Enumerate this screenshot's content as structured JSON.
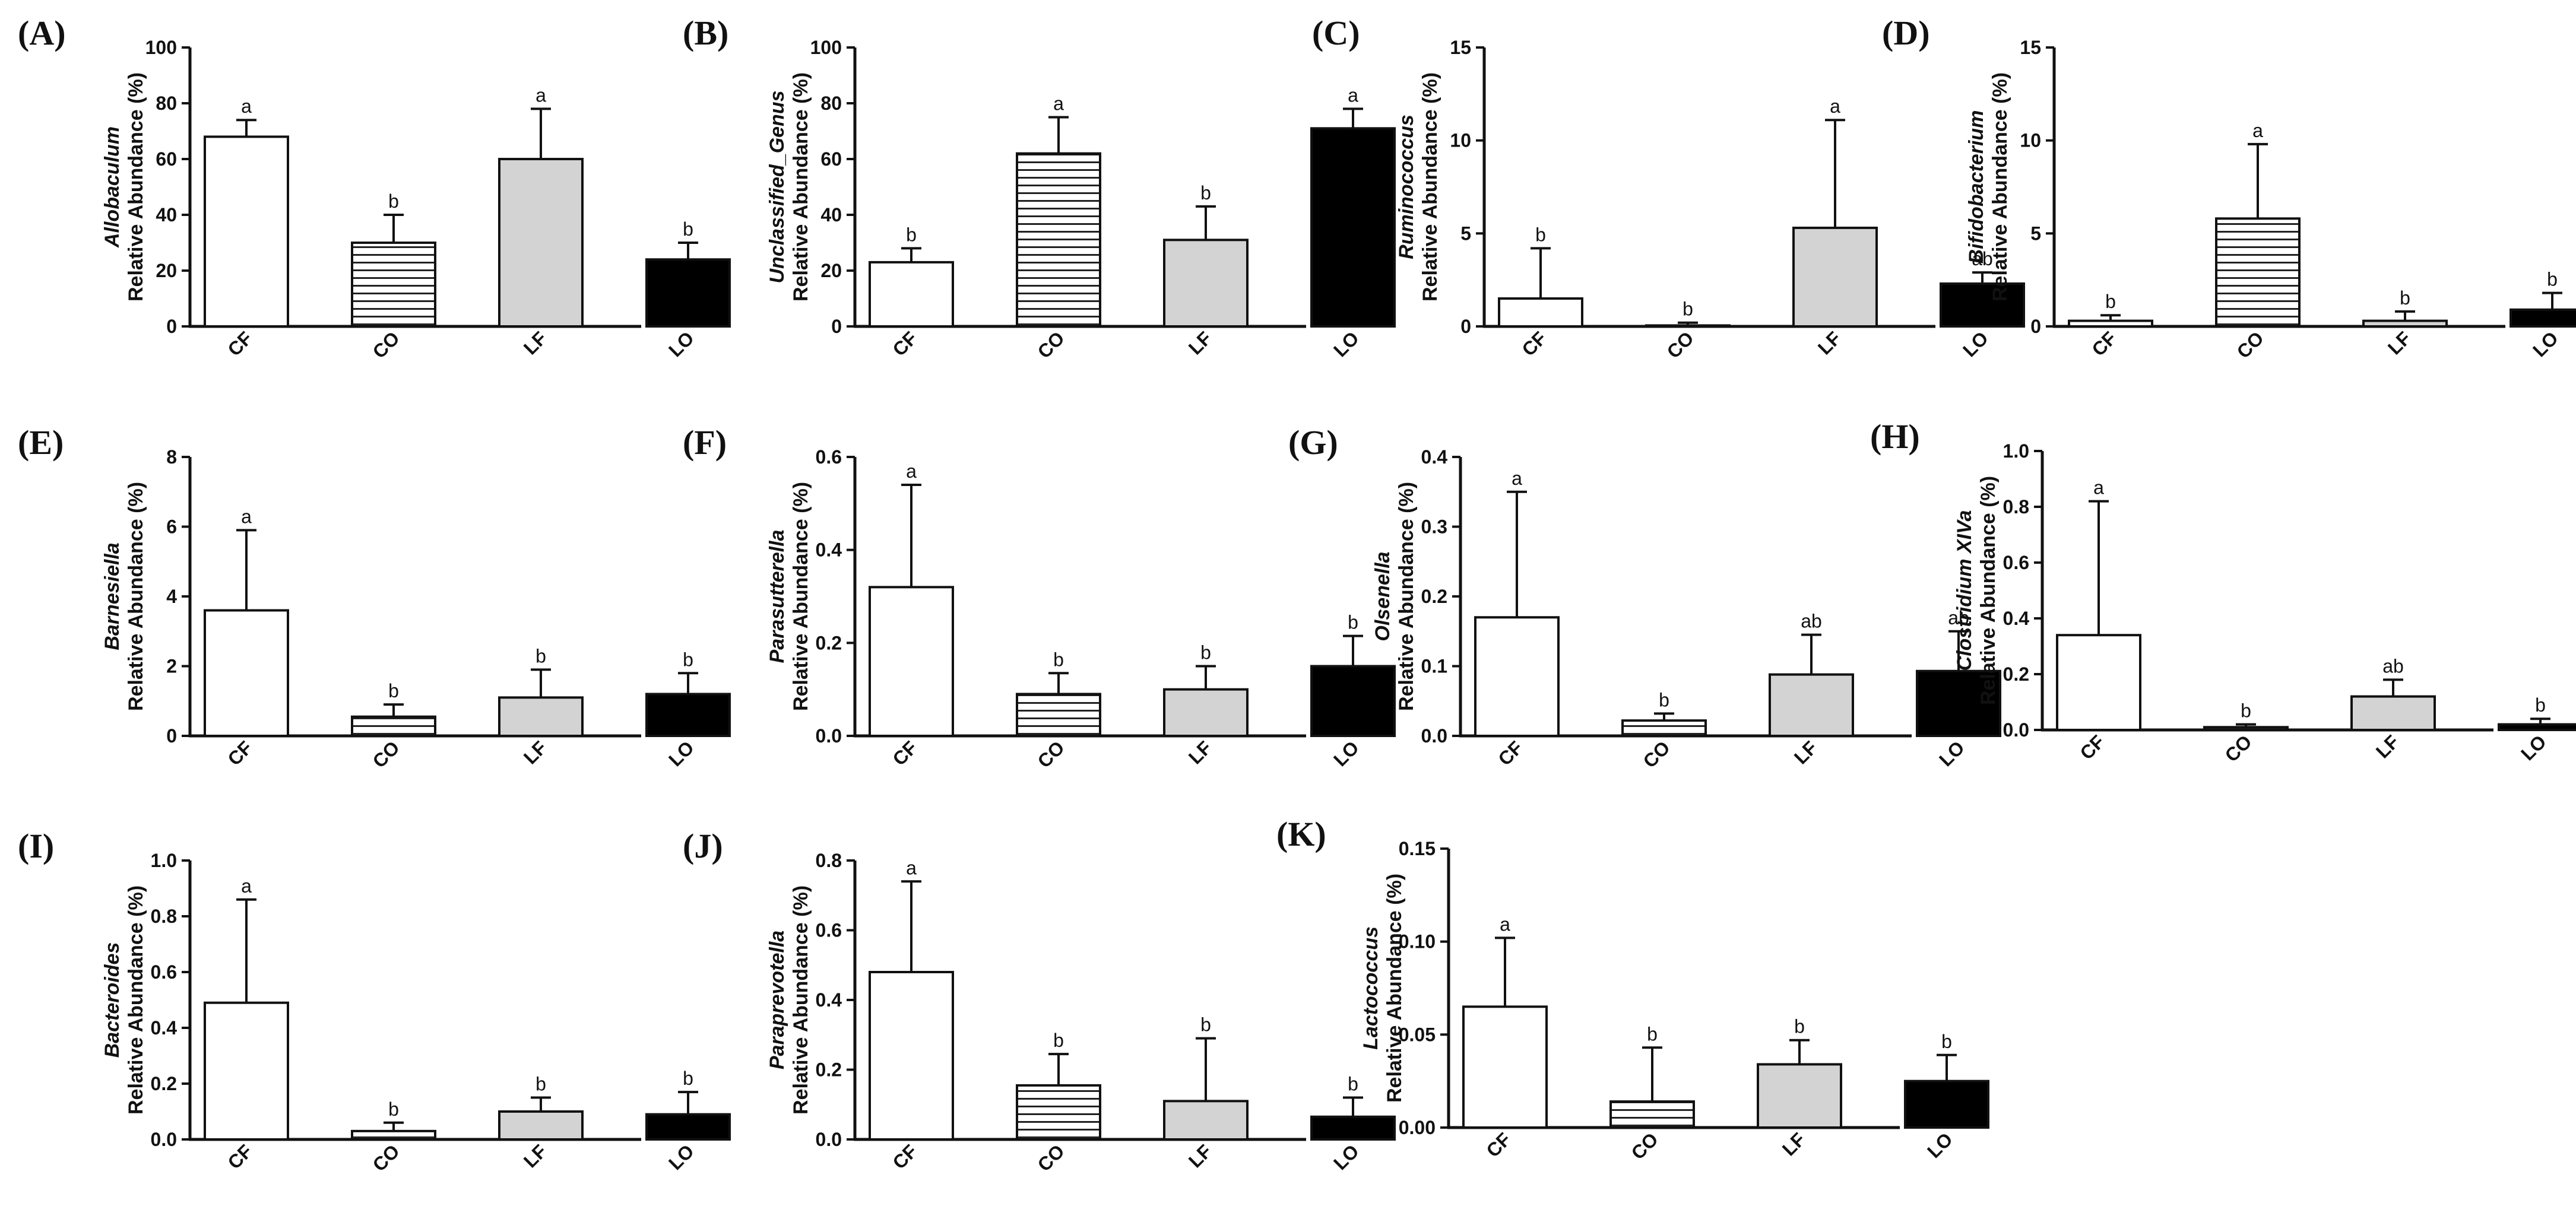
{
  "figure": {
    "fills": {
      "CF": "#ffffff",
      "CO": "striped",
      "LF": "#d3d3d3",
      "LO": "#000000"
    },
    "axis_color": "#111111",
    "stripe_color": "#222222",
    "ylabel_suffix": "Relative Abundance (%)"
  },
  "chart_data": [
    {
      "panel": "(A)",
      "type": "bar",
      "genus": "Allobaculum",
      "ylabel": "Relative Abundance (%)",
      "categories": [
        "CF",
        "CO",
        "LF",
        "LO"
      ],
      "values": [
        68,
        30,
        60,
        24
      ],
      "errors": [
        6,
        10,
        18,
        6
      ],
      "letters": [
        "a",
        "b",
        "a",
        "b"
      ],
      "ylim": [
        0,
        100
      ],
      "yticks": [
        "0",
        "20",
        "40",
        "60",
        "80",
        "100"
      ]
    },
    {
      "panel": "(B)",
      "type": "bar",
      "genus": "Unclassified_Genus",
      "ylabel": "Relative Abundance (%)",
      "categories": [
        "CF",
        "CO",
        "LF",
        "LO"
      ],
      "values": [
        23,
        62,
        31,
        71
      ],
      "errors": [
        5,
        13,
        12,
        7
      ],
      "letters": [
        "b",
        "a",
        "b",
        "a"
      ],
      "ylim": [
        0,
        100
      ],
      "yticks": [
        "0",
        "20",
        "40",
        "60",
        "80",
        "100"
      ]
    },
    {
      "panel": "(C)",
      "type": "bar",
      "genus": "Ruminococcus",
      "ylabel": "Relative Abundance (%)",
      "categories": [
        "CF",
        "CO",
        "LF",
        "LO"
      ],
      "values": [
        1.5,
        0.05,
        5.3,
        2.3
      ],
      "errors": [
        2.7,
        0.15,
        5.8,
        0.6
      ],
      "letters": [
        "b",
        "b",
        "a",
        "ab"
      ],
      "ylim": [
        0,
        15
      ],
      "yticks": [
        "0",
        "5",
        "10",
        "15"
      ]
    },
    {
      "panel": "(D)",
      "type": "bar",
      "genus": "Bifidobacterium",
      "ylabel": "Relative Abundance (%)",
      "categories": [
        "CF",
        "CO",
        "LF",
        "LO"
      ],
      "values": [
        0.3,
        5.8,
        0.3,
        0.9
      ],
      "errors": [
        0.3,
        4.0,
        0.5,
        0.9
      ],
      "letters": [
        "b",
        "a",
        "b",
        "b"
      ],
      "ylim": [
        0,
        15
      ],
      "yticks": [
        "0",
        "5",
        "10",
        "15"
      ]
    },
    {
      "panel": "(E)",
      "type": "bar",
      "genus": "Barnesiella",
      "ylabel": "Relative Abundance (%)",
      "categories": [
        "CF",
        "CO",
        "LF",
        "LO"
      ],
      "values": [
        3.6,
        0.55,
        1.1,
        1.2
      ],
      "errors": [
        2.3,
        0.35,
        0.8,
        0.6
      ],
      "letters": [
        "a",
        "b",
        "b",
        "b"
      ],
      "ylim": [
        0,
        8
      ],
      "yticks": [
        "0",
        "2",
        "4",
        "6",
        "8"
      ]
    },
    {
      "panel": "(F)",
      "type": "bar",
      "genus": "Parasutterella",
      "ylabel": "Relative Abundance (%)",
      "categories": [
        "CF",
        "CO",
        "LF",
        "LO"
      ],
      "values": [
        0.32,
        0.09,
        0.1,
        0.15
      ],
      "errors": [
        0.22,
        0.045,
        0.05,
        0.065
      ],
      "letters": [
        "a",
        "b",
        "b",
        "b"
      ],
      "ylim": [
        0,
        0.6
      ],
      "yticks": [
        "0.0",
        "0.2",
        "0.4",
        "0.6"
      ]
    },
    {
      "panel": "(G)",
      "type": "bar",
      "genus": "Olsenella",
      "ylabel": "Relative Abundance (%)",
      "categories": [
        "CF",
        "CO",
        "LF",
        "LO"
      ],
      "values": [
        0.17,
        0.022,
        0.088,
        0.093
      ],
      "errors": [
        0.18,
        0.01,
        0.057,
        0.057
      ],
      "letters": [
        "a",
        "b",
        "ab",
        "ab"
      ],
      "ylim": [
        0,
        0.4
      ],
      "yticks": [
        "0.0",
        "0.1",
        "0.2",
        "0.3",
        "0.4"
      ]
    },
    {
      "panel": "(H)",
      "type": "bar",
      "genus": "Clostridium XIVa",
      "ylabel": "Relative Abundance (%)",
      "categories": [
        "CF",
        "CO",
        "LF",
        "LO"
      ],
      "values": [
        0.34,
        0.01,
        0.12,
        0.02
      ],
      "errors": [
        0.48,
        0.01,
        0.06,
        0.02
      ],
      "letters": [
        "a",
        "b",
        "ab",
        "b"
      ],
      "ylim": [
        0,
        1.0
      ],
      "yticks": [
        "0.0",
        "0.2",
        "0.4",
        "0.6",
        "0.8",
        "1.0"
      ]
    },
    {
      "panel": "(I)",
      "type": "bar",
      "genus": "Bacteroides",
      "ylabel": "Relative Abundance (%)",
      "categories": [
        "CF",
        "CO",
        "LF",
        "LO"
      ],
      "values": [
        0.49,
        0.03,
        0.1,
        0.09
      ],
      "errors": [
        0.37,
        0.03,
        0.05,
        0.08
      ],
      "letters": [
        "a",
        "b",
        "b",
        "b"
      ],
      "ylim": [
        0,
        1.0
      ],
      "yticks": [
        "0.0",
        "0.2",
        "0.4",
        "0.6",
        "0.8",
        "1.0"
      ]
    },
    {
      "panel": "(J)",
      "type": "bar",
      "genus": "Paraprevotella",
      "ylabel": "Relative Abundance (%)",
      "categories": [
        "CF",
        "CO",
        "LF",
        "LO"
      ],
      "values": [
        0.48,
        0.155,
        0.11,
        0.065
      ],
      "errors": [
        0.26,
        0.09,
        0.18,
        0.055
      ],
      "letters": [
        "a",
        "b",
        "b",
        "b"
      ],
      "ylim": [
        0,
        0.8
      ],
      "yticks": [
        "0.0",
        "0.2",
        "0.4",
        "0.6",
        "0.8"
      ]
    },
    {
      "panel": "(K)",
      "type": "bar",
      "genus": "Lactococcus",
      "ylabel": "Relative Abundance (%)",
      "categories": [
        "CF",
        "CO",
        "LF",
        "LO"
      ],
      "values": [
        0.065,
        0.014,
        0.034,
        0.025
      ],
      "errors": [
        0.037,
        0.029,
        0.013,
        0.014
      ],
      "letters": [
        "a",
        "b",
        "b",
        "b"
      ],
      "ylim": [
        0,
        0.15
      ],
      "yticks": [
        "0.00",
        "0.05",
        "0.10",
        "0.15"
      ]
    }
  ]
}
